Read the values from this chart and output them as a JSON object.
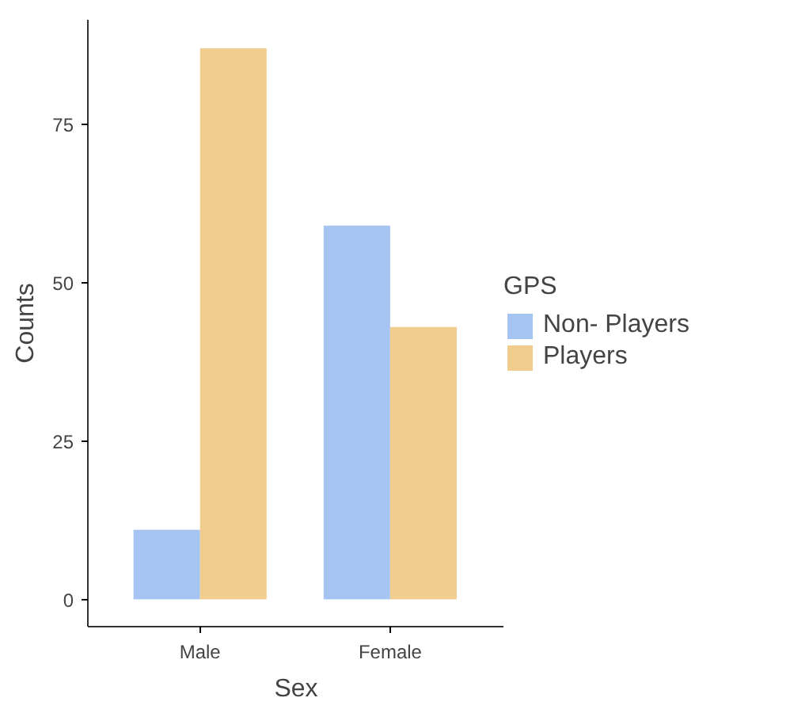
{
  "chart_data": {
    "type": "bar",
    "xlabel": "Sex",
    "ylabel": "Counts",
    "legend_title": "GPS",
    "categories": [
      "Male",
      "Female"
    ],
    "series": [
      {
        "name": "Non- Players",
        "color": "#a6c4f2",
        "values": [
          11,
          59
        ]
      },
      {
        "name": "Players",
        "color": "#f0cd8c",
        "values": [
          87,
          43
        ]
      }
    ],
    "ylim": [
      -4.3,
      91.5
    ],
    "yticks": [
      0,
      25,
      50,
      75
    ],
    "grid": false,
    "legend": "right"
  }
}
